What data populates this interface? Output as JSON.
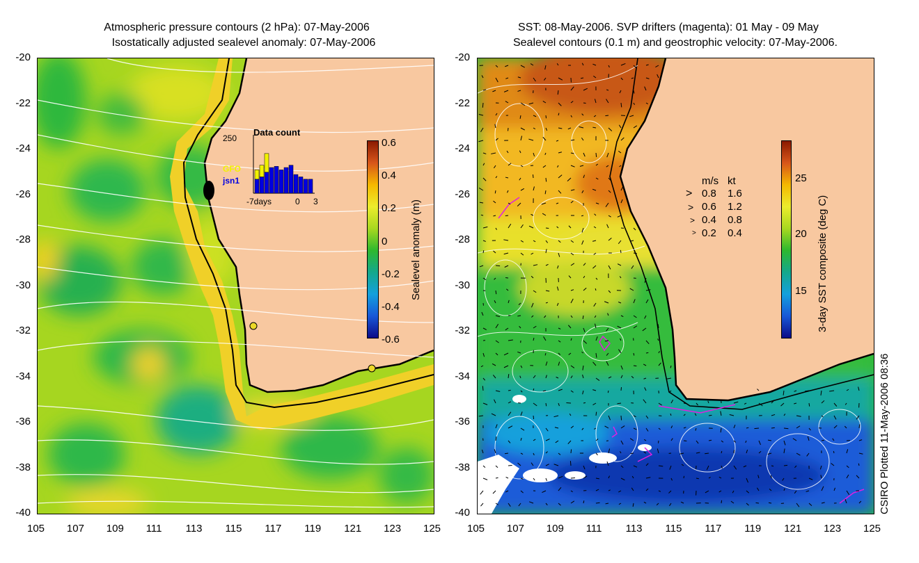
{
  "left_panel": {
    "title_line1": "Atmospheric pressure contours (2 hPa): 07-May-2006",
    "title_line2": "Isostatically adjusted sealevel anomaly: 07-May-2006",
    "colorbar": {
      "label": "Sealevel anomaly (m)",
      "ticks": [
        "0.6",
        "0.4",
        "0.2",
        "0",
        "-0.2",
        "-0.4",
        "-0.6"
      ],
      "colors": [
        "#8b1a00",
        "#d8561a",
        "#f5b800",
        "#ecec2c",
        "#a8d820",
        "#2eb82e",
        "#14a88c",
        "#14a0dc",
        "#1858d8",
        "#0c0c88"
      ]
    },
    "inset": {
      "title": "Data count",
      "ymax_label": "250",
      "legend_gfo": "GFO",
      "legend_jsn1": "jsn1",
      "x_left": "-7days",
      "x_mid": "0",
      "x_right": "3",
      "gfo_color": "#f2f200",
      "jsn1_color": "#0000e0",
      "chart_data": {
        "type": "bar",
        "title": "Data count",
        "ylim": [
          0,
          250
        ],
        "series": [
          {
            "name": "jsn1",
            "values": [
              60,
              70,
              90,
              110,
              115,
              100,
              110,
              120,
              80,
              70,
              60,
              60
            ]
          },
          {
            "name": "GFO",
            "values": [
              40,
              50,
              80,
              0,
              0,
              0,
              0,
              0,
              0,
              0,
              0,
              0
            ]
          }
        ]
      }
    }
  },
  "right_panel": {
    "title_line1": "SST: 08-May-2006. SVP drifters (magenta): 01 May - 09 May",
    "title_line2": "Sealevel contours (0.1 m) and geostrophic velocity: 07-May-2006.",
    "colorbar": {
      "label": "3-day SST composite (deg C)",
      "ticks": [
        "25",
        "20",
        "15"
      ],
      "colors": [
        "#8b1a00",
        "#d8561a",
        "#f5b800",
        "#ecec2c",
        "#a8d820",
        "#2eb82e",
        "#14a88c",
        "#14a0dc",
        "#1858d8",
        "#0c0c88"
      ]
    },
    "velocity_legend": {
      "header_ms": "m/s",
      "header_kt": "kt",
      "rows": [
        {
          "ms": "0.8",
          "kt": "1.6"
        },
        {
          "ms": "0.6",
          "kt": "1.2"
        },
        {
          "ms": "0.4",
          "kt": "0.8"
        },
        {
          "ms": "0.2",
          "kt": "0.4"
        }
      ]
    }
  },
  "axes": {
    "y_labels": [
      "-20",
      "-22",
      "-24",
      "-26",
      "-28",
      "-30",
      "-32",
      "-34",
      "-36",
      "-38",
      "-40"
    ],
    "x_labels": [
      "105",
      "107",
      "109",
      "111",
      "113",
      "115",
      "117",
      "119",
      "121",
      "123",
      "125"
    ]
  },
  "credit": "CSIRO Plotted 11-May-2006 08:36",
  "colors": {
    "land": "#f8c8a0",
    "coast": "#000000",
    "contour": "#ffffff",
    "drifter": "#e020e0"
  }
}
